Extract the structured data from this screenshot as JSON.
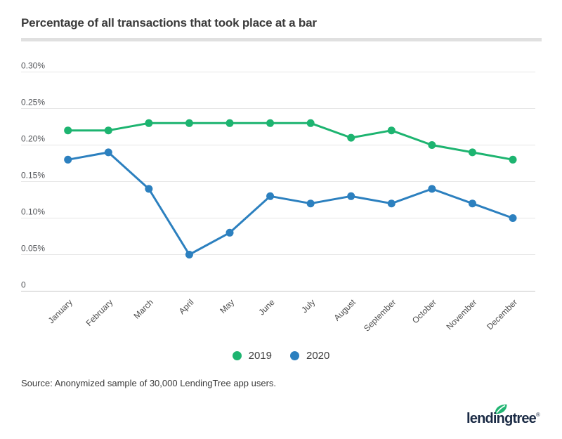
{
  "header": {
    "title": "Percentage of all transactions that took place at a bar"
  },
  "colors": {
    "series_2019": "#1db470",
    "series_2020": "#2c80bf",
    "gridline": "#e6e6e6",
    "zero_line": "#c6c6c6",
    "axis_text": "#54565a",
    "month_text": "#4d4d4d",
    "title_text": "#3b3b3b",
    "divider": "#e0e0e0",
    "logo_navy": "#1b2b45",
    "leaf_green": "#22b573"
  },
  "chart_data": {
    "type": "line",
    "title": "Percentage of all transactions that took place at a bar",
    "unit": "%",
    "grid": true,
    "legend_position": "bottom",
    "marker": "circle",
    "xlabel": "",
    "ylabel": "",
    "ylim": [
      0,
      0.3
    ],
    "categories": [
      "January",
      "February",
      "March",
      "April",
      "May",
      "June",
      "July",
      "August",
      "September",
      "October",
      "November",
      "December"
    ],
    "y_ticks": [
      {
        "label": "0.30%",
        "value": 0.3
      },
      {
        "label": "0.25%",
        "value": 0.25
      },
      {
        "label": "0.20%",
        "value": 0.2
      },
      {
        "label": "0.15%",
        "value": 0.15
      },
      {
        "label": "0.10%",
        "value": 0.1
      },
      {
        "label": "0.05%",
        "value": 0.05
      },
      {
        "label": "0",
        "value": 0
      }
    ],
    "series": [
      {
        "name": "2019",
        "color": "#1db470",
        "values": [
          0.22,
          0.22,
          0.23,
          0.23,
          0.23,
          0.23,
          0.23,
          0.21,
          0.22,
          0.2,
          0.19,
          0.18
        ]
      },
      {
        "name": "2020",
        "color": "#2c80bf",
        "values": [
          0.18,
          0.19,
          0.14,
          0.05,
          0.08,
          0.13,
          0.12,
          0.13,
          0.12,
          0.14,
          0.12,
          0.1
        ]
      }
    ]
  },
  "footer": {
    "source": "Source: Anonymized sample of 30,000 LendingTree app users.",
    "logo_text": "lendingtree",
    "logo_reg": "®"
  }
}
